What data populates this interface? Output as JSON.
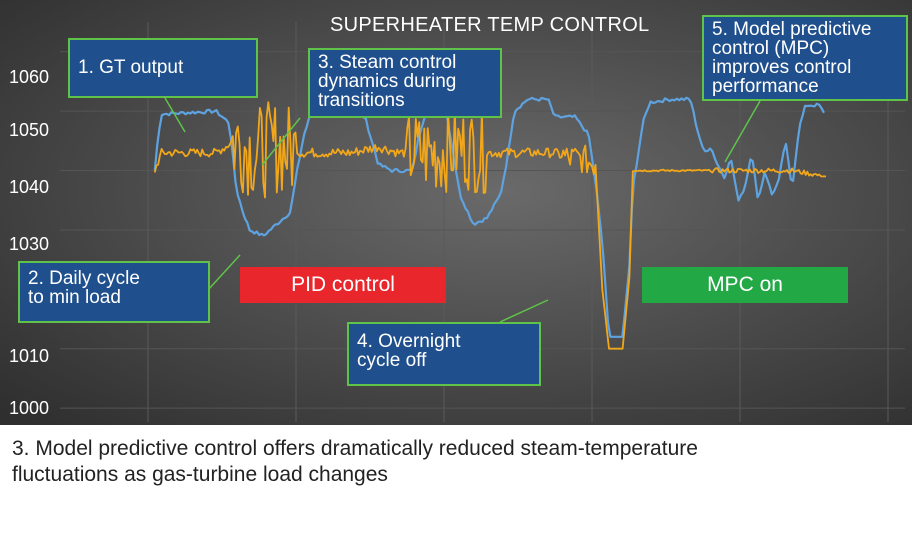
{
  "chart_data": {
    "type": "line",
    "title": "SUPERHEATER TEMP CONTROL",
    "xlabel": "",
    "ylabel": "",
    "yticks": [
      1060,
      1050,
      1040,
      1030,
      1010,
      1000
    ],
    "ylim": [
      998,
      1064
    ],
    "xlim": [
      0,
      100
    ],
    "grid": true,
    "series": [
      {
        "key": "gt_output",
        "color": "#5ea3e0",
        "points": [
          [
            1,
            1040
          ],
          [
            1.5,
            1046
          ],
          [
            2,
            1049.5
          ],
          [
            10,
            1050
          ],
          [
            12,
            1048
          ],
          [
            13,
            1037
          ],
          [
            14,
            1033
          ],
          [
            15,
            1030
          ],
          [
            17,
            1029
          ],
          [
            19,
            1031
          ],
          [
            21,
            1033
          ],
          [
            22,
            1040
          ],
          [
            23,
            1046
          ],
          [
            24,
            1049.5
          ],
          [
            30,
            1050
          ],
          [
            32,
            1049
          ],
          [
            34,
            1041
          ],
          [
            36,
            1040
          ],
          [
            39,
            1040
          ],
          [
            40,
            1046
          ],
          [
            41,
            1050
          ],
          [
            44,
            1050
          ],
          [
            45,
            1043
          ],
          [
            46,
            1036
          ],
          [
            48,
            1031
          ],
          [
            50,
            1032
          ],
          [
            52,
            1036
          ],
          [
            53,
            1042
          ],
          [
            54,
            1050
          ],
          [
            56,
            1052
          ],
          [
            59,
            1052
          ],
          [
            60,
            1049
          ],
          [
            61,
            1049
          ],
          [
            63,
            1049
          ],
          [
            65,
            1046
          ],
          [
            66,
            1038
          ],
          [
            67,
            1028
          ],
          [
            68,
            1012
          ],
          [
            70,
            1012
          ],
          [
            71,
            1024
          ],
          [
            71.5,
            1037
          ],
          [
            73,
            1048
          ],
          [
            74,
            1051.5
          ],
          [
            77,
            1052
          ],
          [
            80,
            1052
          ],
          [
            81,
            1047
          ],
          [
            82,
            1043
          ],
          [
            83,
            1044
          ],
          [
            84,
            1041
          ],
          [
            85,
            1039
          ],
          [
            86,
            1042
          ],
          [
            87,
            1035
          ],
          [
            88,
            1037
          ],
          [
            89,
            1043
          ],
          [
            90,
            1035
          ],
          [
            91,
            1040
          ],
          [
            92,
            1036
          ],
          [
            93,
            1038
          ],
          [
            94,
            1045
          ],
          [
            95,
            1037
          ],
          [
            96,
            1047
          ],
          [
            97,
            1051
          ],
          [
            99,
            1051
          ],
          [
            100,
            1049
          ]
        ]
      },
      {
        "key": "steam_temp",
        "color": "#f2a71b",
        "points": [
          [
            1,
            1040
          ],
          [
            2,
            1043
          ],
          [
            5,
            1043
          ],
          [
            10,
            1043
          ],
          [
            13,
            1045
          ],
          [
            16,
            1043
          ],
          [
            19,
            1044
          ],
          [
            22,
            1043
          ],
          [
            26,
            1043
          ],
          [
            30,
            1043
          ],
          [
            34,
            1044
          ],
          [
            37,
            1043
          ],
          [
            40,
            1043
          ],
          [
            43,
            1043
          ],
          [
            46,
            1044
          ],
          [
            49,
            1043
          ],
          [
            53,
            1043
          ],
          [
            56,
            1043
          ],
          [
            58,
            1043
          ],
          [
            60,
            1043
          ],
          [
            62,
            1042
          ],
          [
            64,
            1042
          ],
          [
            66,
            1041
          ],
          [
            67,
            1020
          ],
          [
            68,
            1010
          ],
          [
            70,
            1010
          ],
          [
            71,
            1022
          ],
          [
            71.5,
            1040
          ],
          [
            72,
            1040
          ],
          [
            80,
            1040
          ],
          [
            90,
            1040
          ],
          [
            95,
            1040
          ],
          [
            100,
            1039
          ]
        ]
      }
    ]
  },
  "annotations": [
    {
      "text": "1. GT output"
    },
    {
      "text": "2. Daily cycle\nto min load"
    },
    {
      "text": "3. Steam control\ndynamics during\ntransitions"
    },
    {
      "text": "4. Overnight\ncycle off"
    },
    {
      "text": "5. Model predictive\ncontrol (MPC)\nimproves control\nperformance"
    }
  ],
  "bands": [
    {
      "text": "PID control",
      "color": "#e8262b"
    },
    {
      "text": "MPC on",
      "color": "#23a846"
    }
  ],
  "caption": "3. Model predictive control offers dramatically reduced steam-temperature\nfluctuations as gas-turbine load changes"
}
